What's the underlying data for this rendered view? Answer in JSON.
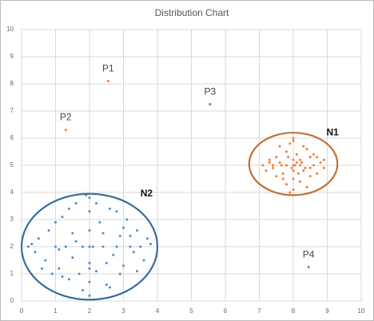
{
  "chart_data": {
    "type": "scatter",
    "title": "Distribution Chart",
    "xlim": [
      0,
      10
    ],
    "xticks": [
      0,
      1,
      2,
      3,
      4,
      5,
      6,
      7,
      8,
      9,
      10
    ],
    "ylim": [
      0,
      10
    ],
    "yticks": [
      0,
      1,
      2,
      3,
      4,
      5,
      6,
      7,
      8,
      9,
      10
    ],
    "grid": true,
    "series": [
      {
        "color": "#4a8ad4",
        "x": [
          0.2,
          0.4,
          0.5,
          0.7,
          0.8,
          1.0,
          1.1,
          1.2,
          1.3,
          1.4,
          1.5,
          1.6,
          1.7,
          1.8,
          1.9,
          2.0,
          2.0,
          2.0,
          2.0,
          2.0,
          2.0,
          2.1,
          2.2,
          2.3,
          2.4,
          2.5,
          2.6,
          2.7,
          2.8,
          2.9,
          3.0,
          3.1,
          3.2,
          3.3,
          3.4,
          3.5,
          3.6,
          3.8,
          1.0,
          1.5,
          2.5,
          3.0,
          0.6,
          1.2,
          2.8,
          3.4,
          1.8,
          2.2,
          1.4,
          2.6,
          0.9,
          3.2,
          1.6,
          2.4,
          0.3,
          3.7,
          1.1,
          2.9,
          2.0,
          2.0,
          5.55,
          8.45
        ],
        "values": [
          2.0,
          1.8,
          2.3,
          1.5,
          2.6,
          2.0,
          1.2,
          3.1,
          2.0,
          0.8,
          2.5,
          3.6,
          1.0,
          2.0,
          3.9,
          0.2,
          0.7,
          1.4,
          2.6,
          3.3,
          3.8,
          2.0,
          1.1,
          2.9,
          2.0,
          0.6,
          3.4,
          1.7,
          2.0,
          2.4,
          1.3,
          3.0,
          2.0,
          1.8,
          2.6,
          2.0,
          1.5,
          2.1,
          2.9,
          1.6,
          1.4,
          2.7,
          1.2,
          0.9,
          3.3,
          1.1,
          0.4,
          3.6,
          3.4,
          0.5,
          1.0,
          2.4,
          2.2,
          2.5,
          2.1,
          2.3,
          1.9,
          1.0,
          2.0,
          1.2,
          7.25,
          1.25
        ]
      },
      {
        "color": "#ed7d31",
        "x": [
          7.1,
          7.2,
          7.3,
          7.4,
          7.5,
          7.5,
          7.6,
          7.7,
          7.8,
          7.8,
          7.9,
          8.0,
          8.0,
          8.0,
          8.0,
          8.1,
          8.2,
          8.2,
          8.3,
          8.4,
          8.5,
          8.5,
          8.6,
          8.7,
          8.8,
          8.9,
          8.9,
          7.6,
          8.4,
          7.8,
          8.2,
          8.0,
          7.4,
          8.6,
          7.9,
          8.1,
          8.3,
          7.7,
          8.5,
          8.0,
          7.3,
          8.7,
          7.95,
          8.05,
          8.15,
          7.85,
          8.25,
          7.65,
          8.35,
          8.0,
          2.55,
          1.3
        ],
        "values": [
          5.0,
          4.8,
          5.2,
          4.9,
          5.3,
          4.6,
          5.1,
          4.7,
          5.5,
          4.3,
          5.8,
          4.1,
          4.5,
          5.0,
          5.9,
          5.4,
          4.4,
          5.2,
          4.8,
          5.6,
          4.9,
          5.3,
          5.0,
          4.7,
          5.1,
          4.9,
          5.2,
          5.7,
          4.2,
          5.0,
          5.0,
          4.8,
          5.0,
          5.4,
          4.0,
          5.1,
          5.7,
          4.5,
          4.6,
          5.2,
          5.1,
          5.3,
          4.9,
          5.0,
          4.7,
          5.3,
          5.1,
          5.0,
          4.9,
          6.0,
          8.1,
          6.3
        ]
      }
    ],
    "ellipses": [
      {
        "label": "N1",
        "cx": 8.0,
        "cy": 5.05,
        "rx": 1.3,
        "ry": 1.15,
        "color": "#c0703a"
      },
      {
        "label": "N2",
        "cx": 2.0,
        "cy": 2.0,
        "rx": 2.0,
        "ry": 1.95,
        "color": "#3a6a9c"
      }
    ],
    "annotations": [
      {
        "text": "P1",
        "x": 2.55,
        "y": 8.55
      },
      {
        "text": "P2",
        "x": 1.3,
        "y": 6.75
      },
      {
        "text": "P3",
        "x": 5.55,
        "y": 7.7
      },
      {
        "text": "P4",
        "x": 8.45,
        "y": 1.7
      }
    ]
  }
}
